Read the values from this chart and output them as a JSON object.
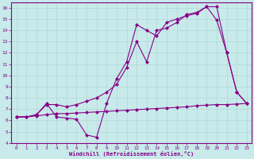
{
  "xlabel": "Windchill (Refroidissement éolien,°C)",
  "bg_color": "#c8eaea",
  "line_color": "#880088",
  "grid_color": "#b0d8d8",
  "xlim": [
    -0.5,
    23.5
  ],
  "ylim": [
    4,
    16.5
  ],
  "xticks": [
    0,
    1,
    2,
    3,
    4,
    5,
    6,
    7,
    8,
    9,
    10,
    11,
    12,
    13,
    14,
    15,
    16,
    17,
    18,
    19,
    20,
    21,
    22,
    23
  ],
  "yticks": [
    4,
    5,
    6,
    7,
    8,
    9,
    10,
    11,
    12,
    13,
    14,
    15,
    16
  ],
  "line1_x": [
    0,
    1,
    2,
    3,
    4,
    5,
    6,
    7,
    8,
    9,
    10,
    11,
    12,
    13,
    14,
    15,
    16,
    17,
    18,
    19,
    20,
    21,
    22,
    23
  ],
  "line1_y": [
    6.3,
    6.3,
    6.4,
    6.5,
    6.6,
    6.6,
    6.65,
    6.7,
    6.75,
    6.8,
    6.85,
    6.9,
    6.95,
    7.0,
    7.05,
    7.1,
    7.15,
    7.2,
    7.3,
    7.35,
    7.4,
    7.4,
    7.45,
    7.5
  ],
  "line2_x": [
    0,
    1,
    2,
    3,
    4,
    5,
    6,
    7,
    8,
    9,
    10,
    11,
    12,
    13,
    14,
    15,
    16,
    17,
    18,
    19,
    20,
    21,
    22,
    23
  ],
  "line2_y": [
    6.3,
    6.3,
    6.5,
    7.5,
    6.3,
    6.2,
    6.1,
    4.7,
    4.5,
    7.5,
    9.7,
    11.2,
    14.5,
    14.0,
    13.5,
    14.7,
    15.0,
    15.3,
    15.5,
    16.1,
    16.1,
    12.0,
    8.5,
    7.5
  ],
  "line3_x": [
    0,
    1,
    2,
    3,
    4,
    5,
    6,
    7,
    8,
    9,
    10,
    11,
    12,
    13,
    14,
    15,
    16,
    17,
    18,
    19,
    20,
    21,
    22,
    23
  ],
  "line3_y": [
    6.3,
    6.3,
    6.5,
    7.4,
    7.4,
    7.2,
    7.4,
    7.7,
    8.0,
    8.5,
    9.2,
    10.7,
    13.0,
    11.2,
    14.0,
    14.2,
    14.7,
    15.4,
    15.6,
    16.1,
    14.9,
    12.0,
    8.5,
    7.5
  ],
  "markersize": 2.5,
  "linewidth": 0.8
}
